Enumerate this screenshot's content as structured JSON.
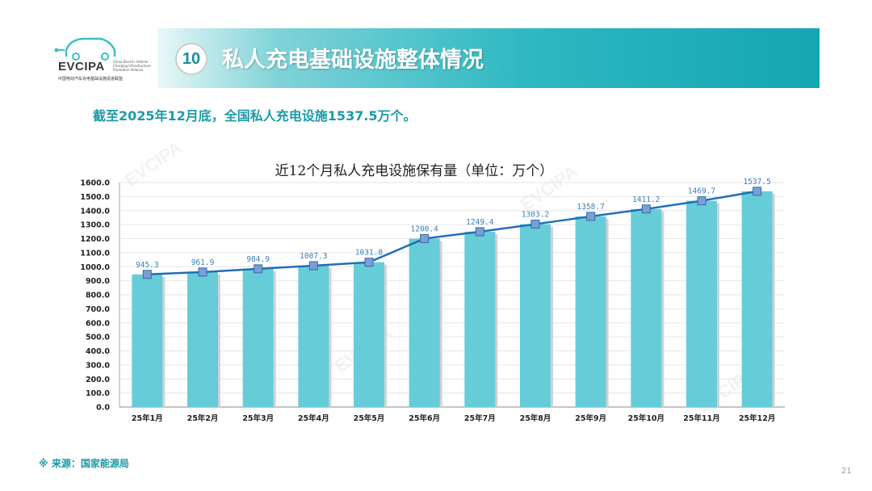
{
  "logo": {
    "name": "EVCIPA",
    "subtitle": "China Electric Vehicle Charging Infrastructure Promotion Alliance",
    "cn_name": "中国电动汽车充电基础设施促进联盟"
  },
  "header": {
    "number": "10",
    "title": "私人充电基础设施整体情况"
  },
  "summary": "截至2025年12月底，全国私人充电设施1537.5万个。",
  "source": "※ 来源：国家能源局",
  "page_number": "21",
  "colors": {
    "bar": "#66cdd8",
    "line": "#1f6fb6",
    "accent": "#1c9aa8"
  },
  "chart_data": {
    "type": "bar",
    "title": "近12个月私人充电设施保有量（单位：万个）",
    "categories": [
      "25年1月",
      "25年2月",
      "25年3月",
      "25年4月",
      "25年5月",
      "25年6月",
      "25年7月",
      "25年8月",
      "25年9月",
      "25年10月",
      "25年11月",
      "25年12月"
    ],
    "values": [
      945.3,
      961.9,
      984.9,
      1007.3,
      1031.8,
      1200.4,
      1249.4,
      1303.2,
      1358.7,
      1411.2,
      1469.7,
      1537.5
    ],
    "value_labels": [
      "945.3",
      "961.9",
      "984.9",
      "1007.3",
      "1031.8",
      "1200.4",
      "1249.4",
      "1303.2",
      "1358.7",
      "1411.2",
      "1469.7",
      "1537.5"
    ],
    "yticks": [
      "0.0",
      "100.0",
      "200.0",
      "300.0",
      "400.0",
      "500.0",
      "600.0",
      "700.0",
      "800.0",
      "900.0",
      "1000.0",
      "1100.0",
      "1200.0",
      "1300.0",
      "1400.0",
      "1500.0",
      "1600.0"
    ],
    "ylim": [
      0,
      1600
    ],
    "overlay": "line",
    "xlabel": "",
    "ylabel": ""
  }
}
